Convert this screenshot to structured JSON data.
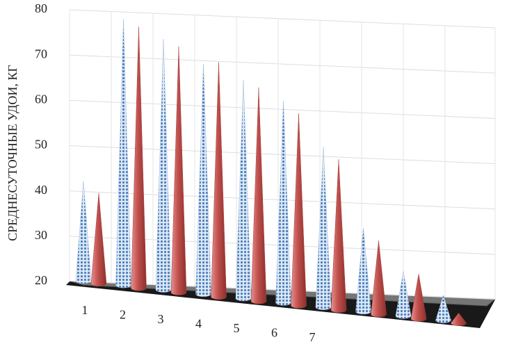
{
  "chart_data": {
    "type": "cone3d",
    "y_label": "СРЕДНЕСУТОЧНЫЕ УДОИ, КГ",
    "categories": [
      "1",
      "2",
      "3",
      "4",
      "5",
      "6",
      "7",
      null,
      null,
      null
    ],
    "series": [
      {
        "color": "#4f81bd",
        "values": [
          42,
          78,
          74,
          69,
          66,
          62,
          53,
          37,
          29,
          25
        ]
      },
      {
        "color": "#c0504d",
        "values": [
          40,
          77,
          73,
          70,
          65,
          60,
          51,
          35,
          29,
          22
        ]
      }
    ],
    "ylim": [
      20,
      80
    ],
    "yticks": [
      20,
      30,
      40,
      50,
      60,
      70,
      80
    ],
    "grid": true
  }
}
